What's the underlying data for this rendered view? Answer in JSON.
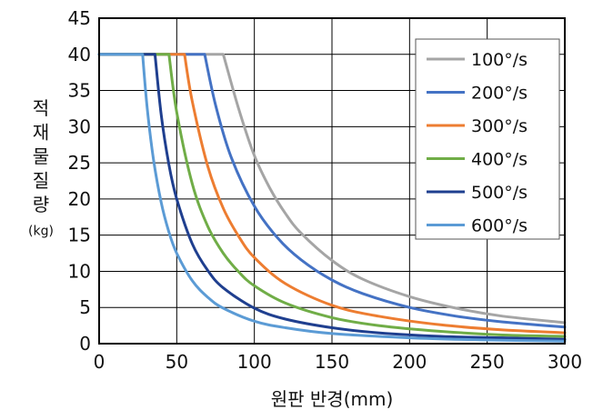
{
  "chart_data": {
    "type": "line",
    "xlabel": "원판 반경(mm)",
    "ylabel_lines": [
      "적",
      "재",
      "물",
      "질",
      "량",
      "(kg)"
    ],
    "xlim": [
      0,
      300
    ],
    "ylim": [
      0,
      45
    ],
    "x_ticks": [
      "0",
      "50",
      "100",
      "150",
      "200",
      "250",
      "300"
    ],
    "y_ticks": [
      "0",
      "5",
      "10",
      "15",
      "20",
      "25",
      "30",
      "35",
      "40",
      "45"
    ],
    "grid": true,
    "legend_position": "top-right",
    "series": [
      {
        "name": "100°/s",
        "color": "#a5a5a5",
        "x": [
          0,
          80,
          90,
          100,
          110,
          120,
          130,
          150,
          170,
          200,
          230,
          260,
          300
        ],
        "y": [
          40,
          40,
          32.4,
          26.0,
          21.5,
          18.0,
          15.3,
          11.5,
          8.9,
          6.5,
          4.9,
          3.8,
          2.9
        ]
      },
      {
        "name": "200°/s",
        "color": "#4472c4",
        "x": [
          0,
          68,
          75,
          85,
          100,
          115,
          130,
          150,
          170,
          200,
          230,
          260,
          300
        ],
        "y": [
          40,
          40,
          33.0,
          25.8,
          19.0,
          14.6,
          11.6,
          8.8,
          6.9,
          5.0,
          3.8,
          3.0,
          2.3
        ]
      },
      {
        "name": "300°/s",
        "color": "#ed7d31",
        "x": [
          0,
          55,
          60,
          70,
          80,
          90,
          100,
          120,
          150,
          180,
          220,
          260,
          300
        ],
        "y": [
          40,
          40,
          33.5,
          24.5,
          18.7,
          14.8,
          11.9,
          8.3,
          5.3,
          3.8,
          2.6,
          1.9,
          1.5
        ]
      },
      {
        "name": "400°/s",
        "color": "#70ad47",
        "x": [
          0,
          45,
          50,
          60,
          70,
          80,
          90,
          100,
          120,
          150,
          180,
          220,
          260,
          300
        ],
        "y": [
          40,
          40,
          32.0,
          22.1,
          16.2,
          12.5,
          9.9,
          8.0,
          5.6,
          3.6,
          2.5,
          1.7,
          1.2,
          1.0
        ]
      },
      {
        "name": "500°/s",
        "color": "#1f3f8f",
        "x": [
          0,
          36,
          40,
          45,
          50,
          60,
          70,
          80,
          100,
          120,
          150,
          180,
          220,
          260,
          300
        ],
        "y": [
          40,
          40,
          31.6,
          24.7,
          20.0,
          13.8,
          10.1,
          7.7,
          4.9,
          3.4,
          2.2,
          1.5,
          1.0,
          0.8,
          0.6
        ]
      },
      {
        "name": "600°/s",
        "color": "#5b9bd5",
        "x": [
          0,
          28,
          31,
          35,
          40,
          45,
          50,
          60,
          70,
          80,
          100,
          120,
          150,
          200,
          250,
          300
        ],
        "y": [
          40,
          40,
          32.5,
          25.5,
          19.5,
          15.4,
          12.5,
          8.7,
          6.4,
          4.9,
          3.1,
          2.2,
          1.4,
          0.8,
          0.5,
          0.35
        ]
      }
    ]
  }
}
